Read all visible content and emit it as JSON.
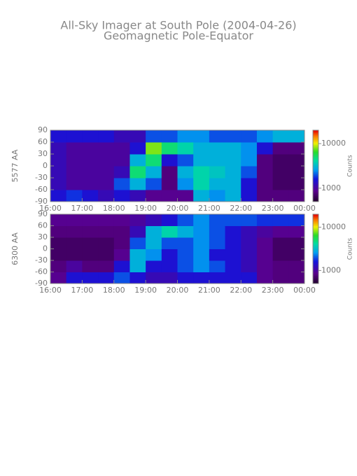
{
  "chart_data": [
    {
      "type": "heatmap",
      "title": "All-Sky Imager at South Pole (2004-04-26)",
      "subtitle": "Geomagnetic Pole-Equator",
      "ylabel": "5577 AA",
      "x": [
        16.25,
        16.75,
        17.25,
        17.75,
        18.25,
        18.75,
        19.25,
        19.75,
        20.25,
        20.75,
        21.25,
        21.75,
        22.25,
        22.75,
        23.25,
        23.75
      ],
      "y": [
        -75,
        -45,
        -15,
        15,
        45,
        75
      ],
      "values": [
        [
          1500,
          1800,
          1500,
          1200,
          1500,
          1200,
          900,
          900,
          900,
          3000,
          2500,
          3000,
          1500,
          800,
          800,
          800
        ],
        [
          1200,
          1000,
          1000,
          1000,
          2000,
          3000,
          2000,
          800,
          2500,
          4000,
          3000,
          3000,
          1500,
          800,
          700,
          700
        ],
        [
          1200,
          1000,
          1000,
          1000,
          1200,
          5000,
          3000,
          800,
          3000,
          4000,
          3500,
          3000,
          2000,
          800,
          700,
          700
        ],
        [
          1200,
          1000,
          1000,
          1000,
          1000,
          3000,
          5000,
          1500,
          2000,
          3000,
          3000,
          3000,
          2500,
          800,
          700,
          700
        ],
        [
          1200,
          1000,
          1000,
          1000,
          1000,
          1500,
          8000,
          5000,
          4000,
          3000,
          3000,
          3000,
          2500,
          1500,
          800,
          800
        ],
        [
          1500,
          1500,
          1500,
          1500,
          1200,
          1200,
          2000,
          2000,
          2500,
          2500,
          2000,
          2000,
          2000,
          2500,
          3000,
          3000
        ]
      ],
      "xlim": [
        16,
        24
      ],
      "xticks": [
        {
          "value": 16,
          "label": "16:00"
        },
        {
          "value": 17,
          "label": "17:00"
        },
        {
          "value": 18,
          "label": "18:00"
        },
        {
          "value": 19,
          "label": "19:00"
        },
        {
          "value": 20,
          "label": "20:00"
        },
        {
          "value": 21,
          "label": "21:00"
        },
        {
          "value": 22,
          "label": "22:00"
        },
        {
          "value": 23,
          "label": "23:00"
        },
        {
          "value": 24,
          "label": "00:00"
        }
      ],
      "ylim": [
        -90,
        90
      ],
      "yticks": [
        -90,
        -60,
        -30,
        0,
        30,
        60,
        90
      ],
      "colormap": "rainbow",
      "zscale": "log",
      "zlim": [
        500,
        20000
      ],
      "zticks": [
        1000,
        10000
      ],
      "zlabel": "Counts"
    },
    {
      "type": "heatmap",
      "ylabel": "6300 AA",
      "x": [
        16.25,
        16.75,
        17.25,
        17.75,
        18.25,
        18.75,
        19.25,
        19.75,
        20.25,
        20.75,
        21.25,
        21.75,
        22.25,
        22.75,
        23.25,
        23.75
      ],
      "y": [
        -75,
        -45,
        -15,
        15,
        45,
        75
      ],
      "values": [
        [
          900,
          1500,
          1500,
          1500,
          2000,
          1500,
          1200,
          1200,
          1500,
          1500,
          1500,
          1500,
          1500,
          900,
          800,
          800
        ],
        [
          800,
          1000,
          800,
          800,
          1500,
          3000,
          1500,
          1500,
          2000,
          2500,
          2000,
          1500,
          1200,
          900,
          800,
          800
        ],
        [
          700,
          700,
          700,
          700,
          900,
          3000,
          2500,
          1500,
          2000,
          2500,
          1500,
          1500,
          1200,
          900,
          700,
          700
        ],
        [
          700,
          700,
          700,
          700,
          800,
          2000,
          3000,
          2000,
          2000,
          2500,
          2000,
          1500,
          1200,
          900,
          700,
          700
        ],
        [
          800,
          800,
          800,
          800,
          800,
          1200,
          3000,
          4000,
          3000,
          2500,
          2000,
          1500,
          1200,
          1000,
          900,
          900
        ],
        [
          900,
          900,
          900,
          900,
          900,
          1000,
          1200,
          1500,
          2000,
          2500,
          2000,
          2000,
          2000,
          1800,
          1800,
          1800
        ]
      ],
      "xlim": [
        16,
        24
      ],
      "xticks": [
        {
          "value": 16,
          "label": "16:00"
        },
        {
          "value": 17,
          "label": "17:00"
        },
        {
          "value": 18,
          "label": "18:00"
        },
        {
          "value": 19,
          "label": "19:00"
        },
        {
          "value": 20,
          "label": "20:00"
        },
        {
          "value": 21,
          "label": "21:00"
        },
        {
          "value": 22,
          "label": "22:00"
        },
        {
          "value": 23,
          "label": "23:00"
        },
        {
          "value": 24,
          "label": "00:00"
        }
      ],
      "ylim": [
        -90,
        90
      ],
      "yticks": [
        -90,
        -60,
        -30,
        0,
        30,
        60,
        90
      ],
      "colormap": "rainbow",
      "zscale": "log",
      "zlim": [
        500,
        20000
      ],
      "zticks": [
        1000,
        10000
      ],
      "zlabel": "Counts"
    }
  ]
}
